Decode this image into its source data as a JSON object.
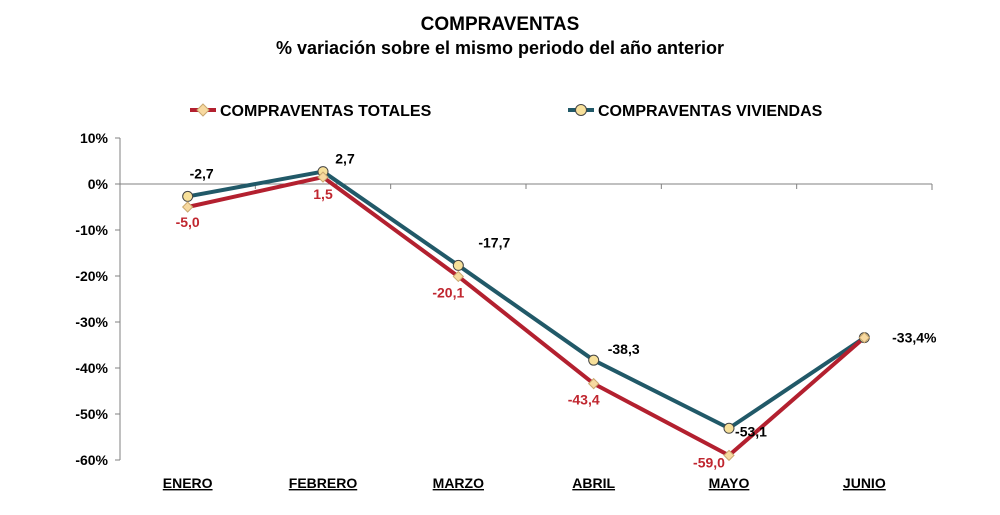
{
  "chart_data": {
    "type": "line",
    "title": "COMPRAVENTAS",
    "subtitle": "% variación sobre el mismo periodo del año anterior",
    "categories": [
      "ENERO",
      "FEBRERO",
      "MARZO",
      "ABRIL",
      "MAYO",
      "JUNIO"
    ],
    "y_ticks": [
      "10%",
      "0%",
      "-10%",
      "-20%",
      "-30%",
      "-40%",
      "-50%",
      "-60%"
    ],
    "ylim": [
      -60,
      10
    ],
    "grid": false,
    "legend_position": "top",
    "series": [
      {
        "name": "COMPRAVENTAS TOTALES",
        "color": "#b3202f",
        "marker": "diamond",
        "marker_color": "#f7d9a0",
        "values": [
          -5.0,
          1.5,
          -20.1,
          -43.4,
          -59.0,
          -33.4
        ],
        "labels": [
          "-5,0",
          "1,5",
          "-20,1",
          "-43,4",
          "-59,0",
          ""
        ]
      },
      {
        "name": "COMPRAVENTAS VIVIENDAS",
        "color": "#215968",
        "marker": "circle",
        "marker_color": "#f7e09a",
        "values": [
          -2.7,
          2.7,
          -17.7,
          -38.3,
          -53.1,
          -33.4
        ],
        "labels": [
          "-2,7",
          "2,7",
          "-17,7",
          "-38,3",
          "-53,1",
          "-33,4%"
        ]
      }
    ]
  }
}
